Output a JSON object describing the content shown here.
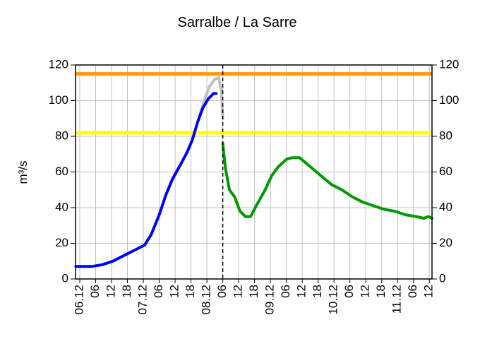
{
  "chart_data": {
    "type": "line",
    "title": "Sarralbe / La Sarre",
    "y_label": "m³/s",
    "xlim": [
      -1.6,
      133
    ],
    "xticks": [
      {
        "value": 0,
        "label": "06.12"
      },
      {
        "value": 6,
        "label": "06"
      },
      {
        "value": 12,
        "label": "12"
      },
      {
        "value": 18,
        "label": "18"
      },
      {
        "value": 24,
        "label": "07.12"
      },
      {
        "value": 30,
        "label": "06"
      },
      {
        "value": 36,
        "label": "12"
      },
      {
        "value": 42,
        "label": "18"
      },
      {
        "value": 48,
        "label": "08.12"
      },
      {
        "value": 54,
        "label": "06"
      },
      {
        "value": 60,
        "label": "12"
      },
      {
        "value": 66,
        "label": "18"
      },
      {
        "value": 72,
        "label": "09.12"
      },
      {
        "value": 78,
        "label": "06"
      },
      {
        "value": 84,
        "label": "12"
      },
      {
        "value": 90,
        "label": "18"
      },
      {
        "value": 96,
        "label": "10.12"
      },
      {
        "value": 102,
        "label": "06"
      },
      {
        "value": 108,
        "label": "12"
      },
      {
        "value": 114,
        "label": "18"
      },
      {
        "value": 120,
        "label": "11.12"
      },
      {
        "value": 126,
        "label": "06"
      },
      {
        "value": 132,
        "label": "12"
      }
    ],
    "ylim": [
      0,
      120
    ],
    "yticks": [
      0,
      20,
      40,
      60,
      80,
      100,
      120
    ],
    "y2lim": [
      0,
      120
    ],
    "y2ticks": [
      0,
      20,
      40,
      60,
      80,
      100,
      120
    ],
    "grid": true,
    "thresholds": [
      {
        "value": 115,
        "color": "#ff9900"
      },
      {
        "value": 82,
        "color": "#ffff00"
      }
    ],
    "now_line": {
      "x": 54
    },
    "series": [
      {
        "color": "#c0c0c0",
        "x": [
          44.5,
          47,
          49,
          51,
          52.5,
          53.5,
          54
        ],
        "values": [
          88,
          100,
          108,
          112,
          113,
          105,
          90
        ]
      },
      {
        "color": "#0000ff",
        "x": [
          -1.5,
          4.5,
          8.5,
          12.5,
          16.5,
          20.5,
          24.5,
          27,
          30,
          32.5,
          35,
          38,
          40.5,
          42.5,
          44.5,
          46.5,
          48.5,
          50.5,
          51.5
        ],
        "values": [
          7,
          7,
          8,
          10,
          13,
          16,
          19,
          25,
          36,
          47,
          56,
          64,
          71,
          78,
          88,
          96,
          101,
          104,
          104
        ]
      },
      {
        "color": "#009900",
        "x": [
          54,
          55,
          56.5,
          58.5,
          60.5,
          62.5,
          64.5,
          67,
          70,
          72.5,
          75,
          78,
          80,
          83,
          87,
          91,
          95,
          99,
          103,
          107,
          111,
          115,
          119,
          123,
          127,
          130,
          131.5,
          133
        ],
        "values": [
          76,
          62,
          50,
          46,
          38,
          35,
          35,
          42,
          50,
          58,
          63,
          67,
          68,
          68,
          63,
          58,
          53,
          50,
          46,
          43,
          41,
          39,
          38,
          36,
          35,
          34,
          35,
          34
        ]
      }
    ]
  }
}
